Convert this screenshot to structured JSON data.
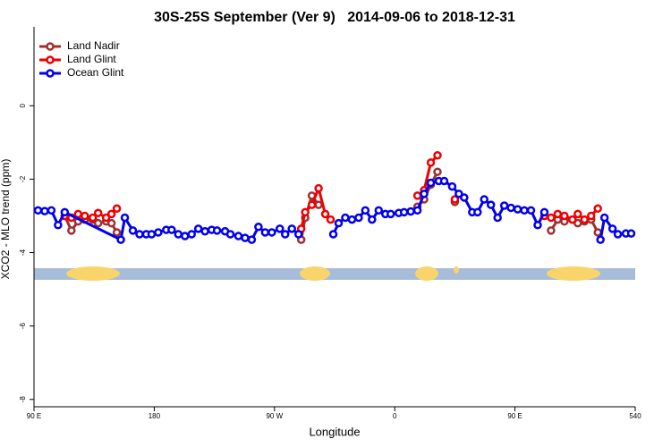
{
  "chart_data": {
    "type": "line",
    "title": "30S-25S September (Ver 9)   2014-09-06 to 2018-12-31",
    "x_label": "Longitude",
    "y_label": "XCO2 - MLO trend (ppm)",
    "xlim": [
      90,
      540
    ],
    "ylim": [
      -8.2,
      2.15
    ],
    "xticks": [
      {
        "value": 90,
        "label": "90 E"
      },
      180,
      {
        "value": 270,
        "label": "90 W"
      },
      {
        "value": 360,
        "label": "0"
      },
      {
        "value": 450,
        "label": "90 E"
      },
      540
    ],
    "yticks": [
      0,
      -2,
      -4,
      -6,
      -8
    ],
    "legend": "top-left",
    "series": [
      {
        "name": "Land Nadir",
        "color": "#a03030",
        "x": [
          113,
          118,
          123,
          128,
          134,
          138,
          144,
          148,
          152,
          null,
          290,
          293,
          298,
          303,
          null,
          377,
          382,
          387,
          392,
          null,
          405,
          null,
          477,
          482,
          487,
          493,
          497,
          502,
          507,
          512
        ],
        "values": [
          -3.0,
          -3.4,
          -3.15,
          -3.1,
          -3.1,
          -3.2,
          -3.15,
          -3.2,
          -3.45,
          null,
          -3.65,
          -3.05,
          -2.45,
          -2.7,
          null,
          -2.75,
          -2.55,
          -2.15,
          -1.8,
          null,
          -2.62,
          null,
          -3.4,
          -3.1,
          -3.15,
          -3.1,
          -3.2,
          -3.15,
          -3.1,
          -3.45
        ]
      },
      {
        "name": "Land Glint",
        "color": "#ee0000",
        "x": [
          113,
          118,
          123,
          128,
          134,
          138,
          144,
          148,
          152,
          null,
          290,
          293,
          298,
          303,
          308,
          312,
          null,
          377,
          382,
          387,
          392,
          null,
          405,
          null,
          472,
          477,
          482,
          487,
          493,
          497,
          502,
          507,
          512
        ],
        "values": [
          -3.0,
          -3.05,
          -2.95,
          -3.0,
          -3.05,
          -2.92,
          -3.05,
          -2.95,
          -2.8,
          null,
          -3.35,
          -2.9,
          -2.7,
          -2.25,
          -2.95,
          -3.1,
          null,
          -2.45,
          -2.3,
          -1.55,
          -1.35,
          null,
          -2.55,
          null,
          -3.0,
          -3.05,
          -2.95,
          -3.0,
          -3.1,
          -2.95,
          -3.1,
          -3.0,
          -2.8
        ]
      },
      {
        "name": "Ocean Glint",
        "color": "#0000ee",
        "x": [
          93,
          98,
          103,
          108,
          113,
          155,
          158,
          164,
          169,
          174,
          178,
          183,
          189,
          193,
          198,
          203,
          208,
          213,
          218,
          223,
          227,
          233,
          237,
          243,
          248,
          253,
          258,
          263,
          268,
          274,
          278,
          283,
          288,
          null,
          314,
          318,
          323,
          328,
          333,
          338,
          343,
          348,
          353,
          357,
          363,
          367,
          372,
          377,
          382,
          387,
          393,
          397,
          403,
          408,
          412,
          418,
          422,
          427,
          432,
          437,
          442,
          447,
          452,
          457,
          462,
          467,
          472,
          null,
          514,
          517,
          523,
          527,
          533,
          537
        ],
        "values": [
          -2.85,
          -2.87,
          -2.85,
          -3.25,
          -2.9,
          -3.65,
          -3.05,
          -3.4,
          -3.5,
          -3.5,
          -3.5,
          -3.45,
          -3.38,
          -3.38,
          -3.5,
          -3.55,
          -3.5,
          -3.35,
          -3.42,
          -3.38,
          -3.4,
          -3.42,
          -3.5,
          -3.55,
          -3.6,
          -3.65,
          -3.3,
          -3.45,
          -3.45,
          -3.35,
          -3.5,
          -3.35,
          -3.5,
          null,
          -3.5,
          -3.2,
          -3.05,
          -3.1,
          -3.05,
          -2.85,
          -3.1,
          -2.85,
          -2.95,
          -2.95,
          -2.92,
          -2.9,
          -2.88,
          -2.85,
          -2.4,
          -2.1,
          -2.05,
          -2.05,
          -2.2,
          -2.4,
          -2.5,
          -2.9,
          -2.9,
          -2.55,
          -2.7,
          -3.05,
          -2.72,
          -2.78,
          -2.82,
          -2.85,
          -2.85,
          -3.25,
          -2.9,
          null,
          -3.65,
          -3.05,
          -3.35,
          -3.5,
          -3.48,
          -3.48
        ]
      }
    ]
  }
}
